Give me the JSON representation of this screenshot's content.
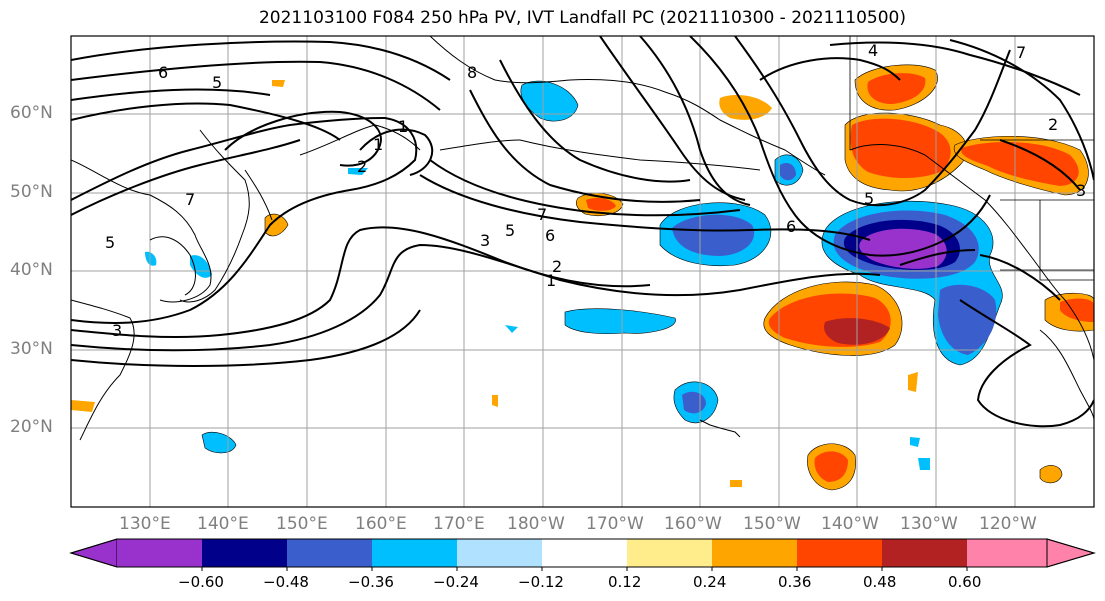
{
  "title": "2021103100 F084 250 hPa PV, IVT Landfall PC (2021110300 - 2021110500)",
  "lat_labels": [
    "60°N",
    "50°N",
    "40°N",
    "30°N",
    "20°N"
  ],
  "lon_labels": [
    "130°E",
    "140°E",
    "150°E",
    "160°E",
    "170°E",
    "180°W",
    "170°W",
    "160°W",
    "150°W",
    "140°W",
    "130°W",
    "120°W"
  ],
  "colorbar": {
    "colors": [
      "#9932cc",
      "#00008b",
      "#3a5fcd",
      "#00bfff",
      "#b0e2ff",
      "#ffffff",
      "#ffec8b",
      "#ffa500",
      "#ff4500",
      "#b22222",
      "#ff82ab"
    ],
    "ticks": [
      "−0.60",
      "−0.48",
      "−0.36",
      "−0.24",
      "−0.12",
      "0.12",
      "0.24",
      "0.36",
      "0.48",
      "0.60"
    ]
  },
  "contour_labels": [
    "6",
    "5",
    "8",
    "1",
    "1",
    "2",
    "7",
    "5",
    "6",
    "3",
    "2",
    "1",
    "5",
    "6",
    "7",
    "3",
    "4",
    "7",
    "2",
    "3",
    "5"
  ]
}
